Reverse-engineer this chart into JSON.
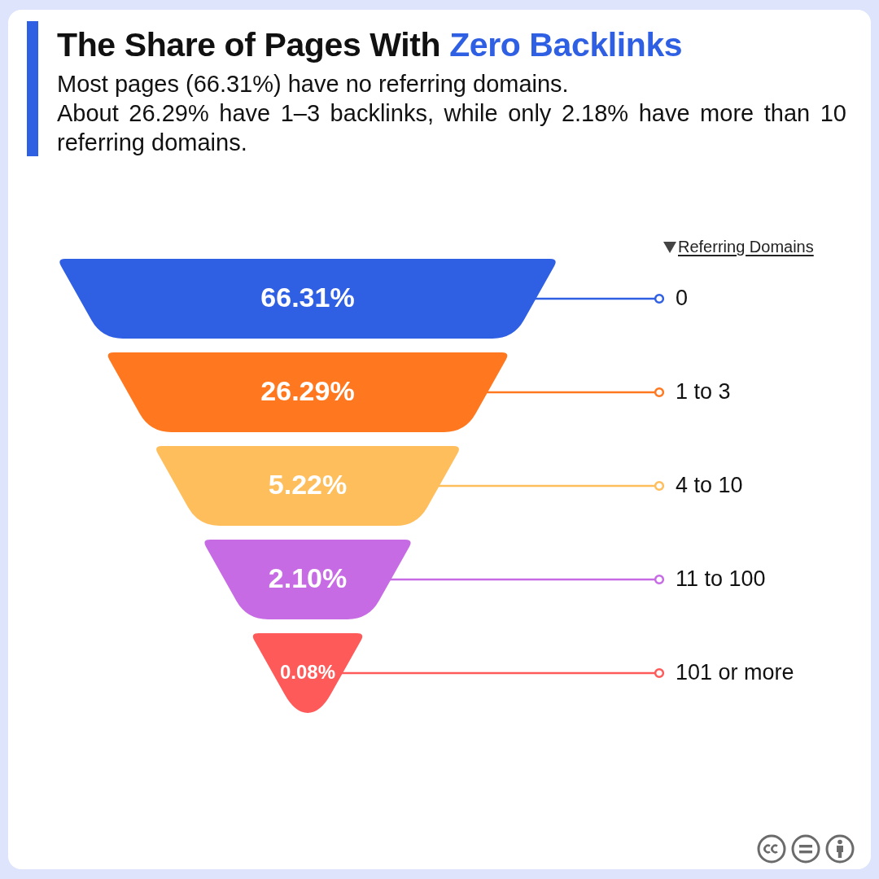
{
  "chart_data": {
    "type": "other",
    "title": "The Share of Pages With Zero Backlinks",
    "subtitle": "Most pages (66.31%) have no referring domains.\nAbout 26.29% have 1–3 backlinks, while only 2.18% have more than 10 referring domains.",
    "legend_title": "Referring Domains",
    "categories": [
      "0",
      "1 to 3",
      "4 to 10",
      "11 to 100",
      "101 or more"
    ],
    "values": [
      66.31,
      26.29,
      5.22,
      2.1,
      0.08
    ],
    "value_labels": [
      "66.31%",
      "26.29%",
      "5.22%",
      "2.10%",
      "0.08%"
    ],
    "colors": [
      "#2f5fe3",
      "#ff7820",
      "#ffbe5c",
      "#c76be5",
      "#ff5a5a"
    ]
  }
}
